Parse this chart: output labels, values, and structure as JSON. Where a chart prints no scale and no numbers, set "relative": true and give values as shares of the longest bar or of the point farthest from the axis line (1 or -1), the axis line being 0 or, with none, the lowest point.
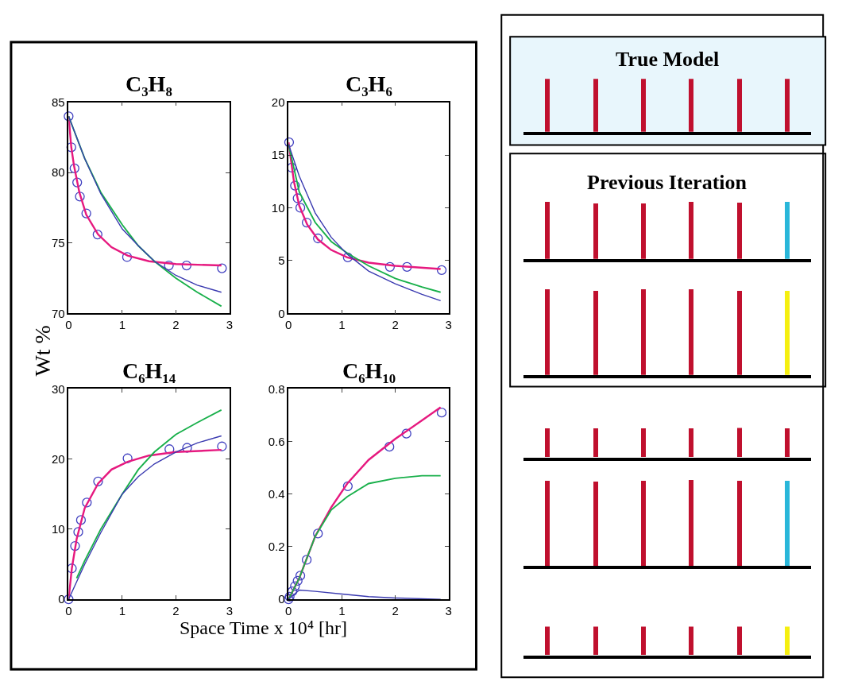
{
  "chart_data": [
    {
      "type": "line",
      "title": "C₃H₈",
      "ylabel": "Wt %",
      "xlim": [
        0,
        3
      ],
      "xticks": [
        0,
        1,
        2,
        3
      ],
      "ylim": [
        70,
        85
      ],
      "yticks": [
        70,
        75,
        80,
        85
      ],
      "series": [
        {
          "type": "scatter",
          "marker": "circle",
          "color": "#4040c0",
          "x": [
            0,
            0.05,
            0.11,
            0.16,
            0.21,
            0.33,
            0.54,
            1.09,
            1.87,
            2.2,
            2.86
          ],
          "values": [
            84.0,
            81.8,
            80.3,
            79.3,
            78.3,
            77.1,
            75.6,
            74.0,
            73.4,
            73.4,
            73.2
          ]
        },
        {
          "color": "#e6197f",
          "x": [
            0,
            0.05,
            0.1,
            0.2,
            0.33,
            0.55,
            0.8,
            1.1,
            1.5,
            2,
            2.85
          ],
          "values": [
            84,
            81.8,
            80.5,
            78.6,
            77,
            75.6,
            74.7,
            74.1,
            73.7,
            73.5,
            73.4
          ]
        },
        {
          "color": "#19b04b",
          "x": [
            0,
            0.3,
            0.6,
            1,
            1.3,
            1.6,
            2,
            2.4,
            2.85
          ],
          "values": [
            84,
            81,
            78.6,
            76.3,
            74.8,
            73.7,
            72.5,
            71.5,
            70.5
          ]
        },
        {
          "color": "#3a3ab0",
          "x": [
            0,
            0.3,
            0.6,
            1,
            1.3,
            1.6,
            2,
            2.4,
            2.85
          ],
          "values": [
            84,
            81,
            78.5,
            76,
            74.8,
            73.7,
            72.7,
            72,
            71.5
          ]
        }
      ]
    },
    {
      "type": "line",
      "title": "C₃H₆",
      "xlim": [
        0,
        3
      ],
      "xticks": [
        0,
        1,
        2,
        3
      ],
      "ylim": [
        0,
        20
      ],
      "yticks": [
        0,
        5,
        10,
        15,
        20
      ],
      "series": [
        {
          "type": "scatter",
          "marker": "circle",
          "color": "#4040c0",
          "x": [
            0.01,
            0.06,
            0.12,
            0.17,
            0.22,
            0.34,
            0.55,
            1.11,
            1.9,
            2.22,
            2.87
          ],
          "values": [
            16.2,
            13.8,
            12.1,
            10.9,
            10.0,
            8.6,
            7.1,
            5.3,
            4.4,
            4.4,
            4.1
          ]
        },
        {
          "color": "#e6197f",
          "x": [
            0,
            0.1,
            0.2,
            0.35,
            0.55,
            0.8,
            1.1,
            1.5,
            2,
            2.85
          ],
          "values": [
            16.2,
            12.5,
            10.2,
            8.4,
            7.0,
            6.0,
            5.3,
            4.8,
            4.5,
            4.2
          ]
        },
        {
          "color": "#19b04b",
          "x": [
            0,
            0.2,
            0.5,
            0.8,
            1.1,
            1.5,
            2,
            2.5,
            2.85
          ],
          "values": [
            16,
            11.5,
            8.6,
            6.8,
            5.7,
            4.5,
            3.3,
            2.5,
            2
          ]
        },
        {
          "color": "#3a3ab0",
          "x": [
            0,
            0.2,
            0.5,
            0.8,
            1.1,
            1.5,
            2,
            2.5,
            2.85
          ],
          "values": [
            16,
            13,
            9.5,
            7.2,
            5.6,
            4,
            2.8,
            1.8,
            1.2
          ]
        }
      ]
    },
    {
      "type": "line",
      "title": "C₆H₁₄",
      "xlabel": "Space Time x 10⁴ [hr]",
      "xlim": [
        0,
        3
      ],
      "xticks": [
        0,
        1,
        2,
        3
      ],
      "ylim": [
        0,
        30
      ],
      "yticks": [
        0,
        10,
        20,
        30
      ],
      "series": [
        {
          "type": "scatter",
          "marker": "circle",
          "color": "#4040c0",
          "x": [
            0,
            0.06,
            0.12,
            0.18,
            0.23,
            0.34,
            0.55,
            1.1,
            1.88,
            2.21,
            2.86
          ],
          "values": [
            0,
            4.4,
            7.6,
            9.6,
            11.3,
            13.8,
            16.8,
            20.1,
            21.4,
            21.6,
            21.8
          ]
        },
        {
          "color": "#e6197f",
          "x": [
            0,
            0.06,
            0.15,
            0.3,
            0.55,
            0.8,
            1.1,
            1.5,
            2,
            2.85
          ],
          "values": [
            0,
            4.4,
            8.6,
            13,
            16.5,
            18.5,
            19.6,
            20.5,
            21,
            21.3
          ]
        },
        {
          "color": "#19b04b",
          "x": [
            0.15,
            0.3,
            0.6,
            1,
            1.3,
            1.6,
            2,
            2.4,
            2.85
          ],
          "values": [
            3,
            5.5,
            10,
            15,
            18.5,
            21,
            23.5,
            25.2,
            27
          ]
        },
        {
          "color": "#3a3ab0",
          "x": [
            0,
            0.3,
            0.6,
            1,
            1.3,
            1.6,
            2,
            2.4,
            2.85
          ],
          "values": [
            0,
            5,
            9.5,
            15,
            17.5,
            19.3,
            21,
            22.3,
            23.3
          ]
        }
      ]
    },
    {
      "type": "line",
      "title": "C₆H₁₀",
      "xlim": [
        0,
        3
      ],
      "xticks": [
        0,
        1,
        2,
        3
      ],
      "ylim": [
        0,
        0.8
      ],
      "yticks": [
        0,
        0.2,
        0.4,
        0.6,
        0.8
      ],
      "series": [
        {
          "type": "scatter",
          "marker": "circle",
          "color": "#4040c0",
          "x": [
            0,
            0.02,
            0.07,
            0.12,
            0.17,
            0.22,
            0.34,
            0.55,
            1.11,
            1.89,
            2.21,
            2.87
          ],
          "values": [
            0,
            0.01,
            0.03,
            0.05,
            0.07,
            0.09,
            0.15,
            0.25,
            0.43,
            0.58,
            0.63,
            0.71
          ]
        },
        {
          "color": "#e6197f",
          "x": [
            0,
            0.2,
            0.5,
            0.8,
            1.1,
            1.5,
            2,
            2.5,
            2.85
          ],
          "values": [
            0,
            0.08,
            0.24,
            0.35,
            0.44,
            0.53,
            0.61,
            0.68,
            0.73
          ]
        },
        {
          "color": "#19b04b",
          "x": [
            0,
            0.2,
            0.5,
            0.8,
            1.1,
            1.5,
            2,
            2.5,
            2.85
          ],
          "values": [
            0,
            0.08,
            0.24,
            0.34,
            0.39,
            0.44,
            0.46,
            0.47,
            0.47
          ]
        },
        {
          "color": "#3a3ab0",
          "x": [
            0,
            0.2,
            0.5,
            1,
            1.5,
            2,
            2.85
          ],
          "values": [
            0,
            0.035,
            0.03,
            0.02,
            0.01,
            0.005,
            0
          ]
        }
      ]
    },
    {
      "type": "bar",
      "title": "True Model",
      "relative": true,
      "categories": [
        null,
        null,
        null,
        null,
        null,
        null
      ],
      "values": [
        1,
        1,
        1,
        1,
        1,
        1
      ],
      "colors": [
        "#c0102e",
        "#c0102e",
        "#c0102e",
        "#c0102e",
        "#c0102e",
        "#c0102e"
      ]
    },
    {
      "type": "bar",
      "title": "Previous Iteration",
      "relative": true,
      "categories": [
        null,
        null,
        null,
        null,
        null,
        null
      ],
      "values": [
        1,
        0.97,
        0.97,
        1,
        0.98,
        1
      ],
      "colors": [
        "#c0102e",
        "#c0102e",
        "#c0102e",
        "#c0102e",
        "#c0102e",
        "#29b6d9"
      ]
    },
    {
      "type": "bar",
      "relative": true,
      "categories": [
        null,
        null,
        null,
        null,
        null,
        null
      ],
      "values": [
        1,
        0.98,
        1,
        1,
        0.98,
        0.98
      ],
      "colors": [
        "#c0102e",
        "#c0102e",
        "#c0102e",
        "#c0102e",
        "#c0102e",
        "#f5ef10"
      ]
    },
    {
      "type": "bar",
      "relative": true,
      "categories": [
        null,
        null,
        null,
        null,
        null,
        null
      ],
      "values": [
        0.97,
        0.97,
        0.97,
        0.97,
        1,
        0.97
      ],
      "colors": [
        "#c0102e",
        "#c0102e",
        "#c0102e",
        "#c0102e",
        "#c0102e",
        "#c0102e"
      ]
    },
    {
      "type": "bar",
      "relative": true,
      "categories": [
        null,
        null,
        null,
        null,
        null,
        null
      ],
      "values": [
        0.99,
        0.98,
        0.99,
        1,
        0.99,
        0.99
      ],
      "colors": [
        "#c0102e",
        "#c0102e",
        "#c0102e",
        "#c0102e",
        "#c0102e",
        "#29b6d9"
      ]
    },
    {
      "type": "bar",
      "relative": true,
      "categories": [
        null,
        null,
        null,
        null,
        null,
        null
      ],
      "values": [
        1,
        1,
        1,
        1,
        1,
        1
      ],
      "colors": [
        "#c0102e",
        "#c0102e",
        "#c0102e",
        "#c0102e",
        "#c0102e",
        "#f5ef10"
      ]
    }
  ]
}
